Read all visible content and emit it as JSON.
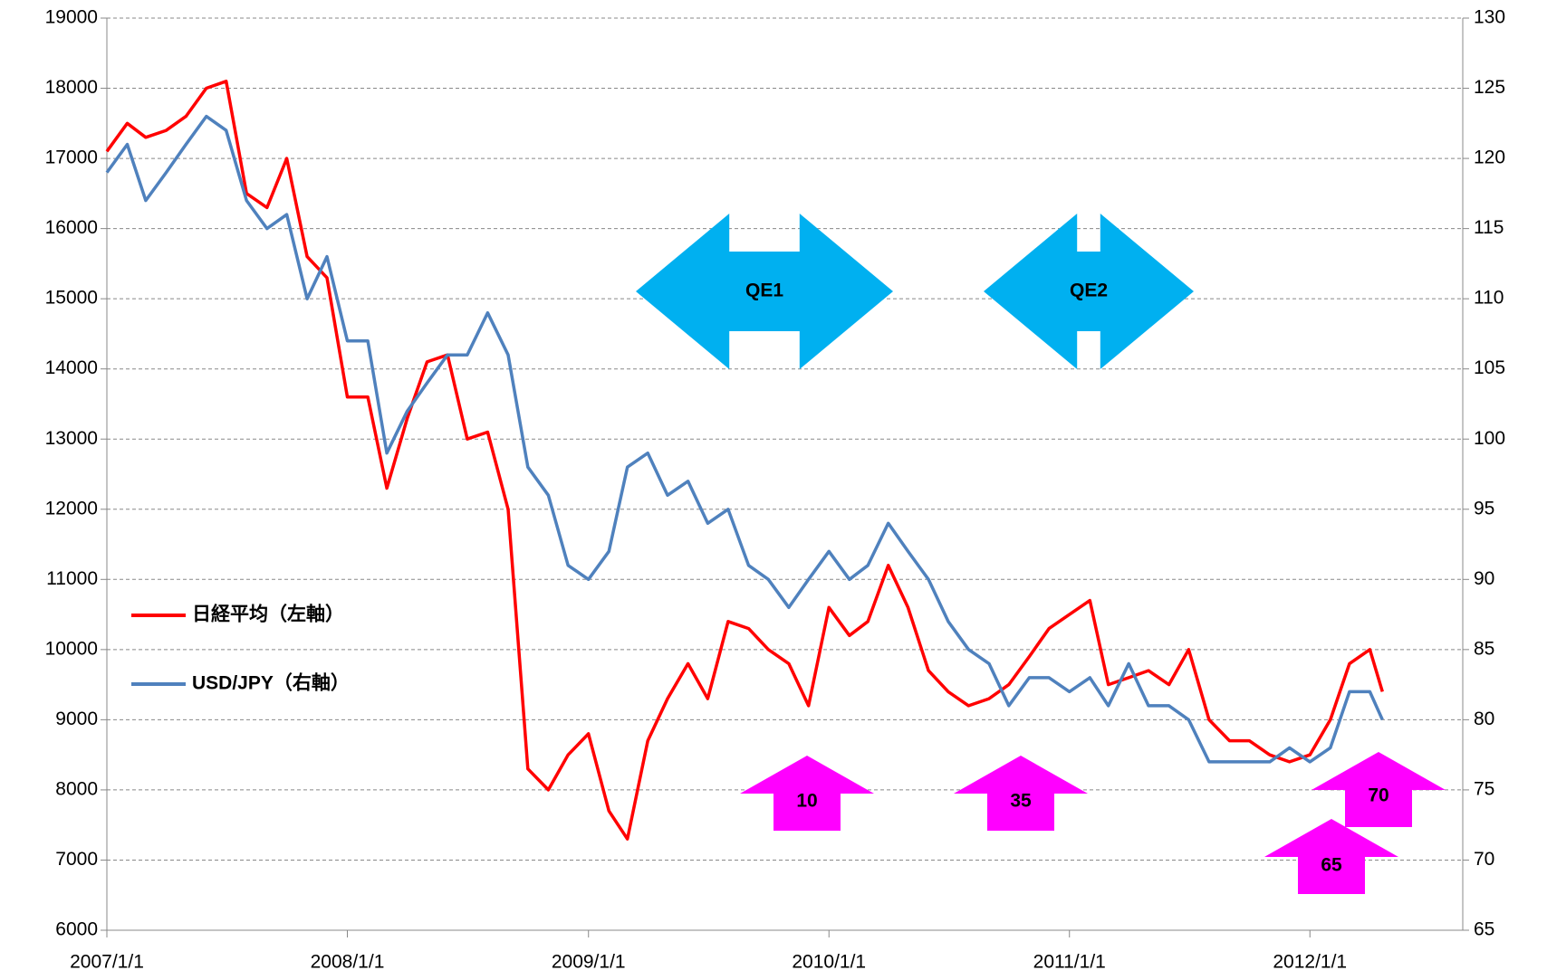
{
  "chart_data": {
    "type": "line",
    "x": [
      "2007/1/1",
      "2007/2/1",
      "2007/3/1",
      "2007/4/1",
      "2007/5/1",
      "2007/6/1",
      "2007/7/1",
      "2007/8/1",
      "2007/9/1",
      "2007/10/1",
      "2007/11/1",
      "2007/12/1",
      "2008/1/1",
      "2008/2/1",
      "2008/3/1",
      "2008/4/1",
      "2008/5/1",
      "2008/6/1",
      "2008/7/1",
      "2008/8/1",
      "2008/9/1",
      "2008/10/1",
      "2008/11/1",
      "2008/12/1",
      "2009/1/1",
      "2009/2/1",
      "2009/3/1",
      "2009/4/1",
      "2009/5/1",
      "2009/6/1",
      "2009/7/1",
      "2009/8/1",
      "2009/9/1",
      "2009/10/1",
      "2009/11/1",
      "2009/12/1",
      "2010/1/1",
      "2010/2/1",
      "2010/3/1",
      "2010/4/1",
      "2010/5/1",
      "2010/6/1",
      "2010/7/1",
      "2010/8/1",
      "2010/9/1",
      "2010/10/1",
      "2010/11/1",
      "2010/12/1",
      "2011/1/1",
      "2011/2/1",
      "2011/3/1",
      "2011/4/1",
      "2011/5/1",
      "2011/6/1",
      "2011/7/1",
      "2011/8/1",
      "2011/9/1",
      "2011/10/1",
      "2011/11/1",
      "2011/12/1",
      "2012/1/1",
      "2012/2/1",
      "2012/3/1",
      "2012/4/1",
      "2012/4/20"
    ],
    "series": [
      {
        "name": "日経平均（左軸）",
        "color": "#ff0000",
        "axis": "y",
        "values": [
          17100,
          17500,
          17300,
          17400,
          17600,
          18000,
          18100,
          16500,
          16300,
          17000,
          15600,
          15300,
          13600,
          13600,
          12300,
          13300,
          14100,
          14200,
          13000,
          13100,
          12000,
          8300,
          8000,
          8500,
          8800,
          7700,
          7300,
          8700,
          9300,
          9800,
          9300,
          10400,
          10300,
          10000,
          9800,
          9200,
          10600,
          10200,
          10400,
          11200,
          10600,
          9700,
          9400,
          9200,
          9300,
          9500,
          9900,
          10300,
          10500,
          10700,
          9500,
          9600,
          9700,
          9500,
          10000,
          9000,
          8700,
          8700,
          8500,
          8400,
          8500,
          9000,
          9800,
          10000,
          9400
        ]
      },
      {
        "name": "USD/JPY（右軸）",
        "color": "#4f81bd",
        "axis": "y2",
        "values": [
          119,
          121,
          117,
          119,
          121,
          123,
          122,
          117,
          115,
          116,
          110,
          113,
          107,
          107,
          99,
          102,
          104,
          106,
          106,
          109,
          106,
          98,
          96,
          91,
          90,
          92,
          98,
          99,
          96,
          97,
          94,
          95,
          91,
          90,
          88,
          90,
          92,
          90,
          91,
          94,
          92,
          90,
          87,
          85,
          84,
          81,
          83,
          83,
          82,
          83,
          81,
          84,
          81,
          81,
          80,
          77,
          77,
          77,
          77,
          78,
          77,
          78,
          82,
          82,
          80
        ]
      }
    ],
    "xlim": [
      "2007/1/1",
      "2012/8/20"
    ],
    "xticks": [
      "2007/1/1",
      "2008/1/1",
      "2009/1/1",
      "2010/1/1",
      "2011/1/1",
      "2012/1/1"
    ],
    "ylim": [
      6000,
      19000
    ],
    "yticks": [
      6000,
      7000,
      8000,
      9000,
      10000,
      11000,
      12000,
      13000,
      14000,
      15000,
      16000,
      17000,
      18000,
      19000
    ],
    "y2lim": [
      65,
      130
    ],
    "y2ticks": [
      65,
      70,
      75,
      80,
      85,
      90,
      95,
      100,
      105,
      110,
      115,
      120,
      125,
      130
    ],
    "grid": true,
    "legend": "left",
    "annotations": [
      {
        "text": "QE1"
      },
      {
        "text": "QE2"
      },
      {
        "text": "10"
      },
      {
        "text": "35"
      },
      {
        "text": "65"
      },
      {
        "text": "70"
      }
    ]
  }
}
